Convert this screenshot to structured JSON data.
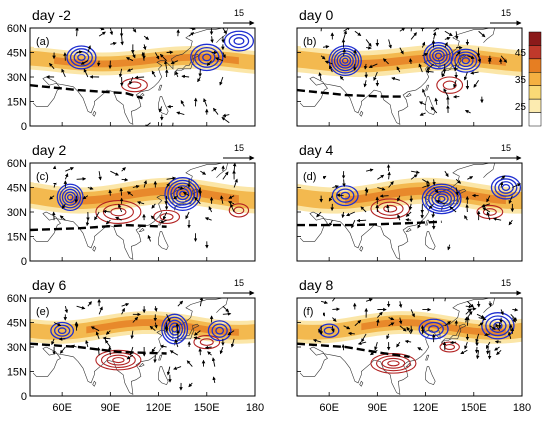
{
  "panels": [
    {
      "id": "a",
      "letter": "(a)",
      "title": "day -2",
      "ref_vector": "15",
      "lon_labels": false,
      "lat_labels": true
    },
    {
      "id": "b",
      "letter": "(b)",
      "title": "day 0",
      "ref_vector": "15",
      "lon_labels": false,
      "lat_labels": false
    },
    {
      "id": "c",
      "letter": "(c)",
      "title": "day 2",
      "ref_vector": "15",
      "lon_labels": false,
      "lat_labels": true
    },
    {
      "id": "d",
      "letter": "(d)",
      "title": "day 4",
      "ref_vector": "15",
      "lon_labels": false,
      "lat_labels": false
    },
    {
      "id": "e",
      "letter": "(e)",
      "title": "day 6",
      "ref_vector": "15",
      "lon_labels": true,
      "lat_labels": true
    },
    {
      "id": "f",
      "letter": "(f)",
      "title": "day 8",
      "ref_vector": "15",
      "lon_labels": true,
      "lat_labels": false
    }
  ],
  "axes": {
    "lat_ticks": [
      "0",
      "15N",
      "30N",
      "45N",
      "60N"
    ],
    "lon_ticks": [
      "60E",
      "90E",
      "120E",
      "150E",
      "180"
    ]
  },
  "colorbar": {
    "labels": [
      "45",
      "35",
      "25"
    ],
    "colors": [
      "#8b1a1a",
      "#c0392b",
      "#e67e22",
      "#f5b041",
      "#f9d976",
      "#fcebb0",
      "#ffffff"
    ]
  },
  "colors": {
    "jet_core": "#e8892b",
    "jet_mid": "#f3b94f",
    "jet_edge": "#fbe6a8",
    "cyclone_contour": "#1f2fd0",
    "anticyclone_contour": "#b22222",
    "trough_line": "#000000",
    "coast": "#333333"
  }
}
